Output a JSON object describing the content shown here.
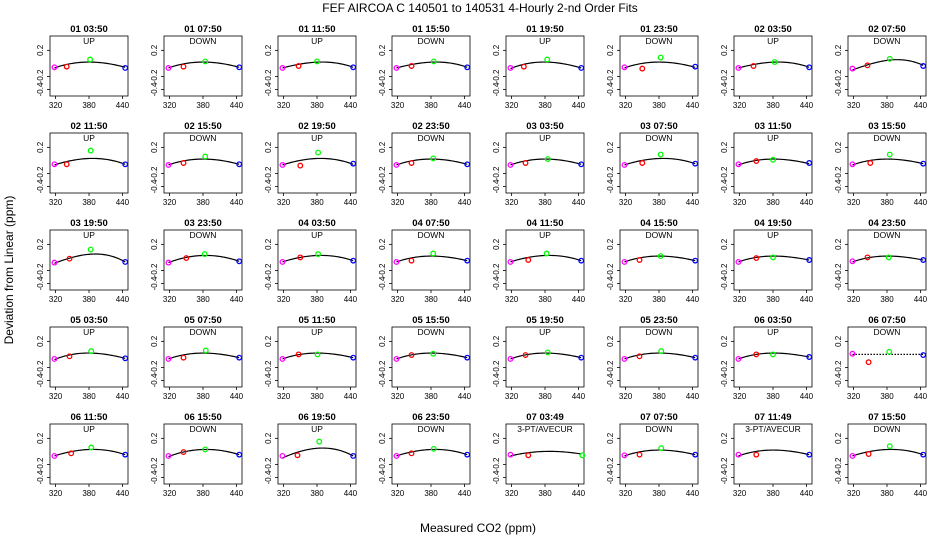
{
  "title": "FEF   AIRCOA C   140501 to 140531   4-Hourly 2-nd Order Fits",
  "ylabel": "Deviation from Linear (ppm)",
  "xlabel": "Measured CO2 (ppm)",
  "colors": {
    "p1": "#ff00ff",
    "p2": "#ff0000",
    "p3": "#00ff00",
    "p4": "#0000ff",
    "fit": "#000000"
  },
  "chart_data": {
    "type": "scatter",
    "xlim": [
      310,
      450
    ],
    "ylim": [
      -0.5,
      0.42
    ],
    "xticks": [
      320,
      380,
      440
    ],
    "yticks": [
      0.2,
      -0.2,
      -0.4
    ],
    "series_note": "Each panel: four standard points (magenta, red, green, blue) plus black 2nd-order fit curve",
    "panels": [
      {
        "title": "01 03:50",
        "label": "UP",
        "points": [
          [
            318,
            -0.06
          ],
          [
            340,
            -0.05
          ],
          [
            382,
            0.06
          ],
          [
            445,
            -0.07
          ]
        ],
        "fit": [
          -0.07,
          0.0,
          0.02,
          -0.06
        ]
      },
      {
        "title": "01 07:50",
        "label": "DOWN",
        "points": [
          [
            318,
            -0.07
          ],
          [
            345,
            -0.05
          ],
          [
            384,
            0.03
          ],
          [
            445,
            -0.06
          ]
        ],
        "fit": [
          -0.07,
          0.0,
          0.02,
          -0.06
        ]
      },
      {
        "title": "01 11:50",
        "label": "UP",
        "points": [
          [
            318,
            -0.07
          ],
          [
            347,
            -0.04
          ],
          [
            380,
            0.03
          ],
          [
            445,
            -0.06
          ]
        ],
        "fit": [
          -0.07,
          -0.01,
          0.02,
          -0.06
        ]
      },
      {
        "title": "01 15:50",
        "label": "DOWN",
        "points": [
          [
            318,
            -0.07
          ],
          [
            345,
            -0.04
          ],
          [
            385,
            0.03
          ],
          [
            445,
            -0.06
          ]
        ],
        "fit": [
          -0.07,
          -0.01,
          0.02,
          -0.06
        ]
      },
      {
        "title": "01 19:50",
        "label": "UP",
        "points": [
          [
            318,
            -0.07
          ],
          [
            342,
            -0.05
          ],
          [
            384,
            0.06
          ],
          [
            445,
            -0.07
          ]
        ],
        "fit": [
          -0.08,
          0.0,
          0.02,
          -0.07
        ]
      },
      {
        "title": "01 23:50",
        "label": "DOWN",
        "points": [
          [
            318,
            -0.06
          ],
          [
            350,
            -0.08
          ],
          [
            383,
            0.09
          ],
          [
            445,
            -0.05
          ]
        ],
        "fit": [
          -0.07,
          0.0,
          0.02,
          -0.06
        ]
      },
      {
        "title": "02 03:50",
        "label": "UP",
        "points": [
          [
            318,
            -0.07
          ],
          [
            345,
            -0.04
          ],
          [
            383,
            0.02
          ],
          [
            445,
            -0.06
          ]
        ],
        "fit": [
          -0.07,
          -0.01,
          0.02,
          -0.06
        ]
      },
      {
        "title": "02 07:50",
        "label": "DOWN",
        "points": [
          [
            318,
            -0.08
          ],
          [
            345,
            -0.03
          ],
          [
            385,
            0.07
          ],
          [
            445,
            -0.04
          ]
        ],
        "fit": [
          -0.1,
          -0.01,
          0.05,
          -0.03
        ]
      },
      {
        "title": "02 11:50",
        "label": "UP",
        "points": [
          [
            318,
            -0.06
          ],
          [
            340,
            -0.06
          ],
          [
            383,
            0.15
          ],
          [
            445,
            -0.06
          ]
        ],
        "fit": [
          -0.07,
          0.0,
          0.03,
          -0.06
        ]
      },
      {
        "title": "02 15:50",
        "label": "DOWN",
        "points": [
          [
            318,
            -0.07
          ],
          [
            345,
            -0.04
          ],
          [
            384,
            0.06
          ],
          [
            445,
            -0.06
          ]
        ],
        "fit": [
          -0.07,
          0.0,
          0.02,
          -0.06
        ]
      },
      {
        "title": "02 19:50",
        "label": "UP",
        "points": [
          [
            318,
            -0.07
          ],
          [
            350,
            -0.08
          ],
          [
            382,
            0.12
          ],
          [
            445,
            -0.05
          ]
        ],
        "fit": [
          -0.07,
          0.0,
          0.03,
          -0.06
        ]
      },
      {
        "title": "02 23:50",
        "label": "DOWN",
        "points": [
          [
            318,
            -0.07
          ],
          [
            345,
            -0.04
          ],
          [
            384,
            0.03
          ],
          [
            445,
            -0.06
          ]
        ],
        "fit": [
          -0.07,
          0.0,
          0.02,
          -0.06
        ]
      },
      {
        "title": "03 03:50",
        "label": "UP",
        "points": [
          [
            318,
            -0.07
          ],
          [
            345,
            -0.04
          ],
          [
            385,
            0.02
          ],
          [
            445,
            -0.06
          ]
        ],
        "fit": [
          -0.07,
          0.0,
          0.02,
          -0.06
        ]
      },
      {
        "title": "03 07:50",
        "label": "DOWN",
        "points": [
          [
            318,
            -0.07
          ],
          [
            350,
            -0.04
          ],
          [
            383,
            0.09
          ],
          [
            445,
            -0.05
          ]
        ],
        "fit": [
          -0.07,
          0.0,
          0.03,
          -0.05
        ]
      },
      {
        "title": "03 11:50",
        "label": "UP",
        "points": [
          [
            318,
            -0.06
          ],
          [
            350,
            -0.01
          ],
          [
            380,
            0.01
          ],
          [
            445,
            -0.04
          ]
        ],
        "fit": [
          -0.07,
          0.0,
          0.02,
          -0.05
        ]
      },
      {
        "title": "03 15:50",
        "label": "DOWN",
        "points": [
          [
            318,
            -0.06
          ],
          [
            350,
            -0.04
          ],
          [
            385,
            0.09
          ],
          [
            445,
            -0.05
          ]
        ],
        "fit": [
          -0.07,
          0.0,
          0.02,
          -0.05
        ]
      },
      {
        "title": "03 19:50",
        "label": "UP",
        "points": [
          [
            318,
            -0.08
          ],
          [
            345,
            -0.02
          ],
          [
            383,
            0.12
          ],
          [
            445,
            -0.07
          ]
        ],
        "fit": [
          -0.09,
          0.0,
          0.05,
          -0.07
        ]
      },
      {
        "title": "03 23:50",
        "label": "DOWN",
        "points": [
          [
            318,
            -0.08
          ],
          [
            350,
            -0.01
          ],
          [
            383,
            0.05
          ],
          [
            445,
            -0.06
          ]
        ],
        "fit": [
          -0.08,
          0.0,
          0.03,
          -0.06
        ]
      },
      {
        "title": "04 03:50",
        "label": "UP",
        "points": [
          [
            318,
            -0.07
          ],
          [
            350,
            0.0
          ],
          [
            382,
            0.05
          ],
          [
            445,
            -0.05
          ]
        ],
        "fit": [
          -0.07,
          0.0,
          0.03,
          -0.05
        ]
      },
      {
        "title": "04 07:50",
        "label": "DOWN",
        "points": [
          [
            318,
            -0.07
          ],
          [
            345,
            -0.05
          ],
          [
            384,
            0.06
          ],
          [
            445,
            -0.05
          ]
        ],
        "fit": [
          -0.07,
          0.0,
          0.02,
          -0.05
        ]
      },
      {
        "title": "04 11:50",
        "label": "UP",
        "points": [
          [
            318,
            -0.07
          ],
          [
            350,
            -0.04
          ],
          [
            383,
            0.06
          ],
          [
            445,
            -0.05
          ]
        ],
        "fit": [
          -0.07,
          0.0,
          0.03,
          -0.05
        ]
      },
      {
        "title": "04 15:50",
        "label": "DOWN",
        "points": [
          [
            318,
            -0.07
          ],
          [
            345,
            -0.04
          ],
          [
            383,
            0.02
          ],
          [
            445,
            -0.05
          ]
        ],
        "fit": [
          -0.07,
          0.0,
          0.02,
          -0.05
        ]
      },
      {
        "title": "04 19:50",
        "label": "UP",
        "points": [
          [
            318,
            -0.07
          ],
          [
            350,
            -0.01
          ],
          [
            380,
            0.0
          ],
          [
            445,
            -0.04
          ]
        ],
        "fit": [
          -0.07,
          0.0,
          0.02,
          -0.04
        ]
      },
      {
        "title": "04 23:50",
        "label": "DOWN",
        "points": [
          [
            318,
            -0.06
          ],
          [
            345,
            0.0
          ],
          [
            383,
            0.0
          ],
          [
            445,
            -0.04
          ]
        ],
        "fit": [
          -0.07,
          0.0,
          0.02,
          -0.04
        ]
      },
      {
        "title": "05 03:50",
        "label": "UP",
        "points": [
          [
            318,
            -0.07
          ],
          [
            345,
            -0.03
          ],
          [
            384,
            0.05
          ],
          [
            445,
            -0.06
          ]
        ],
        "fit": [
          -0.08,
          0.0,
          0.02,
          -0.06
        ]
      },
      {
        "title": "05 07:50",
        "label": "DOWN",
        "points": [
          [
            318,
            -0.07
          ],
          [
            345,
            -0.05
          ],
          [
            385,
            0.06
          ],
          [
            445,
            -0.05
          ]
        ],
        "fit": [
          -0.07,
          0.0,
          0.02,
          -0.05
        ]
      },
      {
        "title": "05 11:50",
        "label": "UP",
        "points": [
          [
            318,
            -0.07
          ],
          [
            347,
            0.0
          ],
          [
            381,
            0.0
          ],
          [
            445,
            -0.05
          ]
        ],
        "fit": [
          -0.07,
          0.0,
          0.02,
          -0.05
        ]
      },
      {
        "title": "05 15:50",
        "label": "DOWN",
        "points": [
          [
            318,
            -0.07
          ],
          [
            345,
            -0.01
          ],
          [
            384,
            0.01
          ],
          [
            445,
            -0.05
          ]
        ],
        "fit": [
          -0.07,
          0.0,
          0.02,
          -0.05
        ]
      },
      {
        "title": "05 19:50",
        "label": "UP",
        "points": [
          [
            318,
            -0.07
          ],
          [
            345,
            -0.01
          ],
          [
            385,
            0.03
          ],
          [
            445,
            -0.05
          ]
        ],
        "fit": [
          -0.07,
          0.0,
          0.02,
          -0.05
        ]
      },
      {
        "title": "05 23:50",
        "label": "DOWN",
        "points": [
          [
            318,
            -0.07
          ],
          [
            345,
            -0.03
          ],
          [
            384,
            0.05
          ],
          [
            445,
            -0.05
          ]
        ],
        "fit": [
          -0.07,
          0.0,
          0.02,
          -0.05
        ]
      },
      {
        "title": "06 03:50",
        "label": "UP",
        "points": [
          [
            318,
            -0.07
          ],
          [
            350,
            0.0
          ],
          [
            380,
            0.0
          ],
          [
            445,
            -0.04
          ]
        ],
        "fit": [
          -0.07,
          0.0,
          0.02,
          -0.04
        ]
      },
      {
        "title": "06 07:50",
        "label": "DOWN",
        "points": [
          [
            318,
            0.01
          ],
          [
            347,
            -0.12
          ],
          [
            384,
            0.04
          ],
          [
            445,
            -0.01
          ]
        ],
        "fit": [
          0.0,
          0.0,
          0.0,
          0.0
        ],
        "dotted_zero": true
      },
      {
        "title": "06 11:50",
        "label": "UP",
        "points": [
          [
            318,
            -0.07
          ],
          [
            348,
            -0.03
          ],
          [
            384,
            0.06
          ],
          [
            445,
            -0.05
          ]
        ],
        "fit": [
          -0.07,
          0.0,
          0.03,
          -0.05
        ]
      },
      {
        "title": "06 15:50",
        "label": "DOWN",
        "points": [
          [
            318,
            -0.07
          ],
          [
            345,
            -0.01
          ],
          [
            384,
            0.03
          ],
          [
            445,
            -0.05
          ]
        ],
        "fit": [
          -0.08,
          0.0,
          0.03,
          -0.05
        ]
      },
      {
        "title": "06 19:50",
        "label": "UP",
        "points": [
          [
            318,
            -0.07
          ],
          [
            345,
            -0.06
          ],
          [
            384,
            0.15
          ],
          [
            445,
            -0.07
          ]
        ],
        "fit": [
          -0.1,
          0.0,
          0.05,
          -0.07
        ]
      },
      {
        "title": "06 23:50",
        "label": "DOWN",
        "points": [
          [
            318,
            -0.07
          ],
          [
            345,
            -0.03
          ],
          [
            385,
            0.04
          ],
          [
            445,
            -0.05
          ]
        ],
        "fit": [
          -0.07,
          0.0,
          0.03,
          -0.05
        ]
      },
      {
        "title": "07 03:49",
        "label": "3-PT/AVECUR",
        "points": [
          [
            318,
            -0.05
          ],
          [
            350,
            -0.06
          ],
          [
            447,
            -0.06
          ]
        ],
        "fit": [
          -0.07,
          -0.02,
          0.0,
          -0.04
        ]
      },
      {
        "title": "07 07:50",
        "label": "DOWN",
        "points": [
          [
            318,
            -0.06
          ],
          [
            345,
            -0.05
          ],
          [
            384,
            0.05
          ],
          [
            445,
            -0.05
          ]
        ],
        "fit": [
          -0.07,
          0.0,
          0.02,
          -0.05
        ]
      },
      {
        "title": "07 11:49",
        "label": "3-PT/AVECUR",
        "points": [
          [
            318,
            -0.05
          ],
          [
            350,
            -0.05
          ],
          [
            445,
            -0.05
          ]
        ],
        "fit": [
          -0.07,
          0.0,
          0.02,
          -0.05
        ]
      },
      {
        "title": "07 15:50",
        "label": "DOWN",
        "points": [
          [
            318,
            -0.07
          ],
          [
            347,
            -0.04
          ],
          [
            385,
            0.08
          ],
          [
            445,
            -0.05
          ]
        ],
        "fit": [
          -0.07,
          0.0,
          0.03,
          -0.05
        ]
      }
    ]
  }
}
